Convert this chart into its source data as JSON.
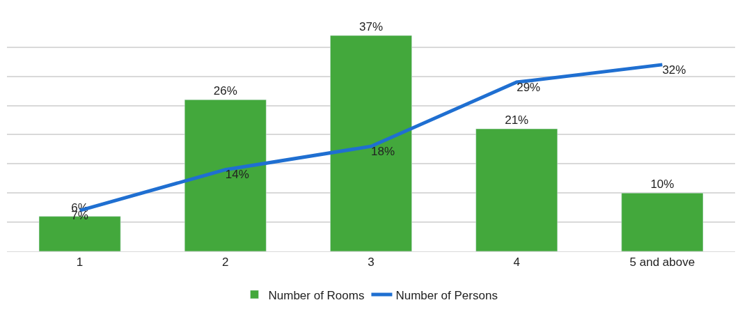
{
  "chart_data": {
    "type": "bar",
    "categories": [
      "1",
      "2",
      "3",
      "4",
      "5 and above"
    ],
    "series": [
      {
        "name": "Number of Rooms",
        "color": "#43a83c",
        "values": [
          6,
          26,
          37,
          21,
          10
        ],
        "value_labels": [
          "6%",
          "26%",
          "37%",
          "21%",
          "10%"
        ]
      },
      {
        "name": "Number of Persons",
        "type": "line",
        "color": "#1f6fd1",
        "values": [
          7,
          14,
          18,
          29,
          32
        ],
        "value_labels": [
          "7%",
          "14%",
          "18%",
          "29%",
          "32%"
        ]
      }
    ],
    "yticks": [
      {
        "value": 0,
        "label": null
      },
      {
        "value": 5,
        "label": null
      },
      {
        "value": 10,
        "label": null
      },
      {
        "value": 15,
        "label": null
      },
      {
        "value": 20,
        "label": null
      },
      {
        "value": 25,
        "label": null
      },
      {
        "value": 30,
        "label": null
      },
      {
        "value": 35,
        "label": null
      }
    ],
    "grid": "y",
    "legend": "bottom",
    "tick_labels": "x",
    "marker": "none",
    "line_style": "solid"
  }
}
